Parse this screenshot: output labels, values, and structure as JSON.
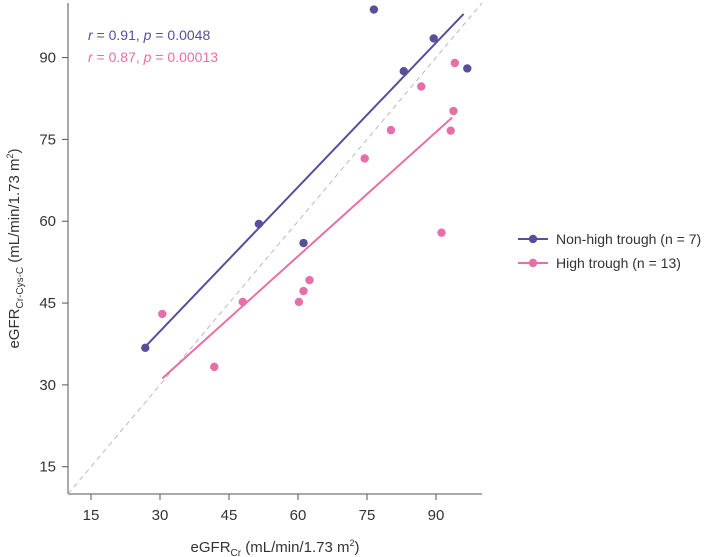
{
  "chart_data": {
    "type": "scatter",
    "title": "",
    "xlabel": "eGFR",
    "xlabel_sub": "Cr",
    "xlabel_unit": " (mL/min/1.73 m",
    "xlabel_sup": "2",
    "xlabel_close": ")",
    "ylabel": "eGFR",
    "ylabel_sub": "Cr-Cys-C",
    "ylabel_unit": " (mL/min/1.73 m",
    "ylabel_sup": "2",
    "ylabel_close": ")",
    "xlim": [
      10,
      100
    ],
    "ylim": [
      10,
      100
    ],
    "x_ticks": [
      15,
      30,
      45,
      60,
      75,
      90
    ],
    "y_ticks": [
      15,
      30,
      45,
      60,
      75,
      90
    ],
    "x_tick_labels": [
      "15",
      "30",
      "45",
      "60",
      "75",
      "90"
    ],
    "y_tick_labels": [
      "15",
      "30",
      "45",
      "60",
      "75",
      "90"
    ],
    "identity_line": true,
    "series": [
      {
        "name": "Non-high trough (n = 7)",
        "color": "#5a4e9b",
        "points": [
          {
            "x": 26.8,
            "y": 36.8
          },
          {
            "x": 51.5,
            "y": 59.5
          },
          {
            "x": 61.2,
            "y": 56.0
          },
          {
            "x": 76.5,
            "y": 98.8
          },
          {
            "x": 83.0,
            "y": 87.5
          },
          {
            "x": 89.5,
            "y": 93.5
          },
          {
            "x": 96.8,
            "y": 88.0
          }
        ],
        "fit": {
          "x1": 26.8,
          "y1": 37.0,
          "x2": 96.0,
          "y2": 98.0
        },
        "stat": {
          "r_label": "r",
          "r_value": " = 0.91, ",
          "p_label": "p",
          "p_value": " = 0.0048"
        }
      },
      {
        "name": "High trough (n = 13)",
        "color": "#e66fa8",
        "points": [
          {
            "x": 30.5,
            "y": 43.0
          },
          {
            "x": 41.8,
            "y": 33.3
          },
          {
            "x": 48.0,
            "y": 45.2
          },
          {
            "x": 60.2,
            "y": 45.2
          },
          {
            "x": 61.2,
            "y": 47.2
          },
          {
            "x": 62.5,
            "y": 49.2
          },
          {
            "x": 74.5,
            "y": 71.5
          },
          {
            "x": 80.2,
            "y": 76.7
          },
          {
            "x": 86.8,
            "y": 84.7
          },
          {
            "x": 91.2,
            "y": 57.9
          },
          {
            "x": 93.2,
            "y": 76.6
          },
          {
            "x": 93.8,
            "y": 80.2
          },
          {
            "x": 94.1,
            "y": 89.0
          }
        ],
        "fit": {
          "x1": 30.5,
          "y1": 31.2,
          "x2": 93.5,
          "y2": 79.0
        },
        "stat": {
          "r_label": "r",
          "r_value": " = 0.87, ",
          "p_label": "p",
          "p_value": " = 0.00013"
        }
      }
    ],
    "legend_position": "right"
  }
}
